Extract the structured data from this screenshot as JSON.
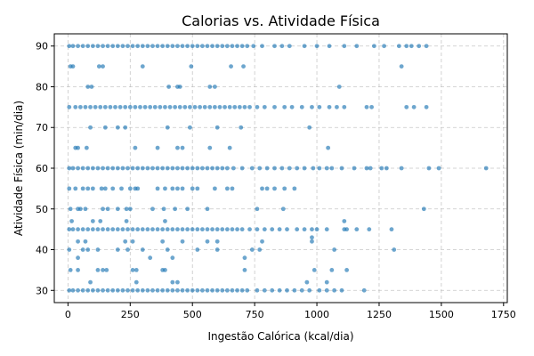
{
  "chart_data": {
    "type": "scatter",
    "title": "Calorias vs. Atividade Física",
    "xlabel": "Ingestão Calórica (kcal/dia)",
    "ylabel": "Atividade Física (min/dia)",
    "xlim": [
      -55,
      1765
    ],
    "ylim": [
      27,
      93
    ],
    "x_ticks": [
      0,
      250,
      500,
      750,
      1000,
      1250,
      1500,
      1750
    ],
    "y_ticks": [
      30,
      40,
      50,
      60,
      70,
      80,
      90
    ],
    "grid": true,
    "point_color": "#1f77b4",
    "points": [
      [
        5,
        90
      ],
      [
        20,
        90
      ],
      [
        40,
        90
      ],
      [
        60,
        90
      ],
      [
        80,
        90
      ],
      [
        100,
        90
      ],
      [
        120,
        90
      ],
      [
        140,
        90
      ],
      [
        160,
        90
      ],
      [
        180,
        90
      ],
      [
        200,
        90
      ],
      [
        220,
        90
      ],
      [
        240,
        90
      ],
      [
        260,
        90
      ],
      [
        280,
        90
      ],
      [
        300,
        90
      ],
      [
        320,
        90
      ],
      [
        340,
        90
      ],
      [
        360,
        90
      ],
      [
        380,
        90
      ],
      [
        400,
        90
      ],
      [
        420,
        90
      ],
      [
        440,
        90
      ],
      [
        460,
        90
      ],
      [
        480,
        90
      ],
      [
        500,
        90
      ],
      [
        520,
        90
      ],
      [
        540,
        90
      ],
      [
        560,
        90
      ],
      [
        580,
        90
      ],
      [
        600,
        90
      ],
      [
        620,
        90
      ],
      [
        640,
        90
      ],
      [
        660,
        90
      ],
      [
        680,
        90
      ],
      [
        700,
        90
      ],
      [
        720,
        90
      ],
      [
        745,
        90
      ],
      [
        780,
        90
      ],
      [
        830,
        90
      ],
      [
        860,
        90
      ],
      [
        890,
        90
      ],
      [
        950,
        90
      ],
      [
        1000,
        90
      ],
      [
        1050,
        90
      ],
      [
        1110,
        90
      ],
      [
        1160,
        90
      ],
      [
        1230,
        90
      ],
      [
        1270,
        90
      ],
      [
        1330,
        90
      ],
      [
        1360,
        90
      ],
      [
        1380,
        90
      ],
      [
        1410,
        90
      ],
      [
        1440,
        90
      ],
      [
        10,
        85
      ],
      [
        20,
        85
      ],
      [
        125,
        85
      ],
      [
        140,
        85
      ],
      [
        300,
        85
      ],
      [
        495,
        85
      ],
      [
        655,
        85
      ],
      [
        705,
        85
      ],
      [
        1340,
        85
      ],
      [
        80,
        80
      ],
      [
        95,
        80
      ],
      [
        405,
        80
      ],
      [
        440,
        80
      ],
      [
        450,
        80
      ],
      [
        570,
        80
      ],
      [
        590,
        80
      ],
      [
        1090,
        80
      ],
      [
        5,
        75
      ],
      [
        30,
        75
      ],
      [
        50,
        75
      ],
      [
        70,
        75
      ],
      [
        90,
        75
      ],
      [
        110,
        75
      ],
      [
        130,
        75
      ],
      [
        150,
        75
      ],
      [
        170,
        75
      ],
      [
        190,
        75
      ],
      [
        210,
        75
      ],
      [
        230,
        75
      ],
      [
        250,
        75
      ],
      [
        270,
        75
      ],
      [
        290,
        75
      ],
      [
        310,
        75
      ],
      [
        330,
        75
      ],
      [
        350,
        75
      ],
      [
        370,
        75
      ],
      [
        390,
        75
      ],
      [
        410,
        75
      ],
      [
        430,
        75
      ],
      [
        450,
        75
      ],
      [
        470,
        75
      ],
      [
        490,
        75
      ],
      [
        510,
        75
      ],
      [
        530,
        75
      ],
      [
        550,
        75
      ],
      [
        570,
        75
      ],
      [
        590,
        75
      ],
      [
        610,
        75
      ],
      [
        630,
        75
      ],
      [
        650,
        75
      ],
      [
        670,
        75
      ],
      [
        690,
        75
      ],
      [
        710,
        75
      ],
      [
        730,
        75
      ],
      [
        760,
        75
      ],
      [
        790,
        75
      ],
      [
        830,
        75
      ],
      [
        870,
        75
      ],
      [
        900,
        75
      ],
      [
        940,
        75
      ],
      [
        980,
        75
      ],
      [
        1010,
        75
      ],
      [
        1050,
        75
      ],
      [
        1080,
        75
      ],
      [
        1110,
        75
      ],
      [
        1200,
        75
      ],
      [
        1220,
        75
      ],
      [
        1360,
        75
      ],
      [
        1390,
        75
      ],
      [
        1440,
        75
      ],
      [
        90,
        70
      ],
      [
        150,
        70
      ],
      [
        200,
        70
      ],
      [
        230,
        70
      ],
      [
        400,
        70
      ],
      [
        490,
        70
      ],
      [
        600,
        70
      ],
      [
        695,
        70
      ],
      [
        970,
        70
      ],
      [
        30,
        65
      ],
      [
        40,
        65
      ],
      [
        75,
        65
      ],
      [
        270,
        65
      ],
      [
        360,
        65
      ],
      [
        440,
        65
      ],
      [
        460,
        65
      ],
      [
        570,
        65
      ],
      [
        650,
        65
      ],
      [
        1045,
        65
      ],
      [
        5,
        60
      ],
      [
        20,
        60
      ],
      [
        40,
        60
      ],
      [
        60,
        60
      ],
      [
        80,
        60
      ],
      [
        100,
        60
      ],
      [
        120,
        60
      ],
      [
        140,
        60
      ],
      [
        160,
        60
      ],
      [
        180,
        60
      ],
      [
        200,
        60
      ],
      [
        220,
        60
      ],
      [
        240,
        60
      ],
      [
        260,
        60
      ],
      [
        280,
        60
      ],
      [
        300,
        60
      ],
      [
        320,
        60
      ],
      [
        340,
        60
      ],
      [
        360,
        60
      ],
      [
        380,
        60
      ],
      [
        400,
        60
      ],
      [
        420,
        60
      ],
      [
        440,
        60
      ],
      [
        460,
        60
      ],
      [
        480,
        60
      ],
      [
        500,
        60
      ],
      [
        520,
        60
      ],
      [
        540,
        60
      ],
      [
        560,
        60
      ],
      [
        580,
        60
      ],
      [
        600,
        60
      ],
      [
        620,
        60
      ],
      [
        640,
        60
      ],
      [
        665,
        60
      ],
      [
        700,
        60
      ],
      [
        740,
        60
      ],
      [
        770,
        60
      ],
      [
        800,
        60
      ],
      [
        830,
        60
      ],
      [
        860,
        60
      ],
      [
        890,
        60
      ],
      [
        920,
        60
      ],
      [
        950,
        60
      ],
      [
        985,
        60
      ],
      [
        1010,
        60
      ],
      [
        1040,
        60
      ],
      [
        1060,
        60
      ],
      [
        1100,
        60
      ],
      [
        1150,
        60
      ],
      [
        1200,
        60
      ],
      [
        1215,
        60
      ],
      [
        1260,
        60
      ],
      [
        1280,
        60
      ],
      [
        1340,
        60
      ],
      [
        1450,
        60
      ],
      [
        1490,
        60
      ],
      [
        1680,
        60
      ],
      [
        5,
        55
      ],
      [
        30,
        55
      ],
      [
        60,
        55
      ],
      [
        80,
        55
      ],
      [
        100,
        55
      ],
      [
        135,
        55
      ],
      [
        150,
        55
      ],
      [
        180,
        55
      ],
      [
        215,
        55
      ],
      [
        250,
        55
      ],
      [
        270,
        55
      ],
      [
        280,
        55
      ],
      [
        360,
        55
      ],
      [
        390,
        55
      ],
      [
        420,
        55
      ],
      [
        440,
        55
      ],
      [
        460,
        55
      ],
      [
        500,
        55
      ],
      [
        520,
        55
      ],
      [
        590,
        55
      ],
      [
        640,
        55
      ],
      [
        660,
        55
      ],
      [
        780,
        55
      ],
      [
        800,
        55
      ],
      [
        830,
        55
      ],
      [
        870,
        55
      ],
      [
        910,
        55
      ],
      [
        10,
        50
      ],
      [
        40,
        50
      ],
      [
        50,
        50
      ],
      [
        70,
        50
      ],
      [
        140,
        50
      ],
      [
        160,
        50
      ],
      [
        200,
        50
      ],
      [
        235,
        50
      ],
      [
        250,
        50
      ],
      [
        340,
        50
      ],
      [
        385,
        50
      ],
      [
        430,
        50
      ],
      [
        480,
        50
      ],
      [
        560,
        50
      ],
      [
        760,
        50
      ],
      [
        865,
        50
      ],
      [
        1430,
        50
      ],
      [
        5,
        45
      ],
      [
        20,
        45
      ],
      [
        40,
        45
      ],
      [
        60,
        45
      ],
      [
        80,
        45
      ],
      [
        100,
        45
      ],
      [
        120,
        45
      ],
      [
        140,
        45
      ],
      [
        160,
        45
      ],
      [
        180,
        45
      ],
      [
        200,
        45
      ],
      [
        220,
        45
      ],
      [
        240,
        45
      ],
      [
        260,
        45
      ],
      [
        280,
        45
      ],
      [
        300,
        45
      ],
      [
        320,
        45
      ],
      [
        340,
        45
      ],
      [
        360,
        45
      ],
      [
        380,
        45
      ],
      [
        400,
        45
      ],
      [
        420,
        45
      ],
      [
        440,
        45
      ],
      [
        460,
        45
      ],
      [
        480,
        45
      ],
      [
        500,
        45
      ],
      [
        520,
        45
      ],
      [
        540,
        45
      ],
      [
        560,
        45
      ],
      [
        580,
        45
      ],
      [
        600,
        45
      ],
      [
        620,
        45
      ],
      [
        640,
        45
      ],
      [
        660,
        45
      ],
      [
        680,
        45
      ],
      [
        700,
        45
      ],
      [
        730,
        45
      ],
      [
        760,
        45
      ],
      [
        790,
        45
      ],
      [
        820,
        45
      ],
      [
        850,
        45
      ],
      [
        880,
        45
      ],
      [
        920,
        45
      ],
      [
        950,
        45
      ],
      [
        980,
        45
      ],
      [
        1000,
        45
      ],
      [
        1040,
        45
      ],
      [
        1110,
        45
      ],
      [
        1120,
        45
      ],
      [
        1160,
        45
      ],
      [
        1210,
        45
      ],
      [
        1300,
        45
      ],
      [
        15,
        47
      ],
      [
        100,
        47
      ],
      [
        130,
        47
      ],
      [
        235,
        47
      ],
      [
        390,
        47
      ],
      [
        1110,
        47
      ],
      [
        980,
        43
      ],
      [
        40,
        42
      ],
      [
        70,
        42
      ],
      [
        230,
        42
      ],
      [
        260,
        42
      ],
      [
        380,
        42
      ],
      [
        460,
        42
      ],
      [
        560,
        42
      ],
      [
        600,
        42
      ],
      [
        780,
        42
      ],
      [
        980,
        42
      ],
      [
        5,
        40
      ],
      [
        60,
        40
      ],
      [
        80,
        40
      ],
      [
        120,
        40
      ],
      [
        200,
        40
      ],
      [
        240,
        40
      ],
      [
        300,
        40
      ],
      [
        400,
        40
      ],
      [
        520,
        40
      ],
      [
        600,
        40
      ],
      [
        740,
        40
      ],
      [
        770,
        40
      ],
      [
        1070,
        40
      ],
      [
        1310,
        40
      ],
      [
        40,
        38
      ],
      [
        330,
        38
      ],
      [
        420,
        38
      ],
      [
        710,
        38
      ],
      [
        10,
        35
      ],
      [
        40,
        35
      ],
      [
        120,
        35
      ],
      [
        140,
        35
      ],
      [
        155,
        35
      ],
      [
        260,
        35
      ],
      [
        275,
        35
      ],
      [
        380,
        35
      ],
      [
        390,
        35
      ],
      [
        710,
        35
      ],
      [
        990,
        35
      ],
      [
        1060,
        35
      ],
      [
        1120,
        35
      ],
      [
        90,
        32
      ],
      [
        275,
        32
      ],
      [
        420,
        32
      ],
      [
        440,
        32
      ],
      [
        960,
        32
      ],
      [
        1040,
        32
      ],
      [
        5,
        30
      ],
      [
        20,
        30
      ],
      [
        40,
        30
      ],
      [
        60,
        30
      ],
      [
        80,
        30
      ],
      [
        100,
        30
      ],
      [
        120,
        30
      ],
      [
        140,
        30
      ],
      [
        160,
        30
      ],
      [
        180,
        30
      ],
      [
        200,
        30
      ],
      [
        220,
        30
      ],
      [
        240,
        30
      ],
      [
        260,
        30
      ],
      [
        280,
        30
      ],
      [
        300,
        30
      ],
      [
        320,
        30
      ],
      [
        340,
        30
      ],
      [
        360,
        30
      ],
      [
        380,
        30
      ],
      [
        400,
        30
      ],
      [
        420,
        30
      ],
      [
        440,
        30
      ],
      [
        460,
        30
      ],
      [
        480,
        30
      ],
      [
        500,
        30
      ],
      [
        520,
        30
      ],
      [
        540,
        30
      ],
      [
        560,
        30
      ],
      [
        580,
        30
      ],
      [
        600,
        30
      ],
      [
        620,
        30
      ],
      [
        640,
        30
      ],
      [
        660,
        30
      ],
      [
        680,
        30
      ],
      [
        700,
        30
      ],
      [
        720,
        30
      ],
      [
        760,
        30
      ],
      [
        790,
        30
      ],
      [
        820,
        30
      ],
      [
        850,
        30
      ],
      [
        880,
        30
      ],
      [
        910,
        30
      ],
      [
        940,
        30
      ],
      [
        970,
        30
      ],
      [
        1010,
        30
      ],
      [
        1040,
        30
      ],
      [
        1070,
        30
      ],
      [
        1100,
        30
      ],
      [
        1190,
        30
      ]
    ]
  }
}
